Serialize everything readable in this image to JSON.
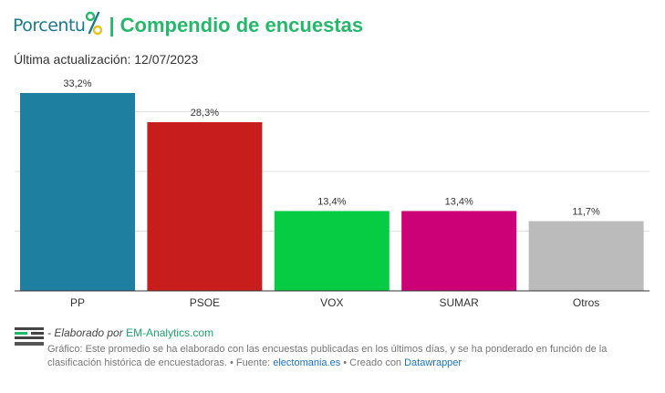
{
  "header": {
    "brand": "Porcentu",
    "brand_mark": "%",
    "separator": "|",
    "title": "Compendio de encuestas"
  },
  "subtitle": "Última actualización: 12/07/2023",
  "chart_data": {
    "type": "bar",
    "categories": [
      "PP",
      "PSOE",
      "VOX",
      "SUMAR",
      "Otros"
    ],
    "values": [
      33.2,
      28.3,
      13.4,
      13.4,
      11.7
    ],
    "value_labels": [
      "33,2%",
      "28,3%",
      "13,4%",
      "13,4%",
      "11,7%"
    ],
    "colors": [
      "#1f7fa0",
      "#c81d1d",
      "#06cc44",
      "#cc0077",
      "#bbbbbb"
    ],
    "ylim": [
      0,
      33.2
    ],
    "grid": true,
    "title": "",
    "xlabel": "",
    "ylabel": ""
  },
  "footer": {
    "logo_text": "EM Analytics",
    "credit_prefix": "- Elaborado por ",
    "credit_link": "EM-Analytics.com",
    "note_1": "Gráfico: Este promedio se ha elaborado con las encuestas publicadas en los últimos días, y se ha ponderado en función de la clasificación histórica de encuestadoras. • Fuente: ",
    "source_link": "electomania.es",
    "note_2": " • Creado con ",
    "tool_link": "Datawrapper"
  }
}
